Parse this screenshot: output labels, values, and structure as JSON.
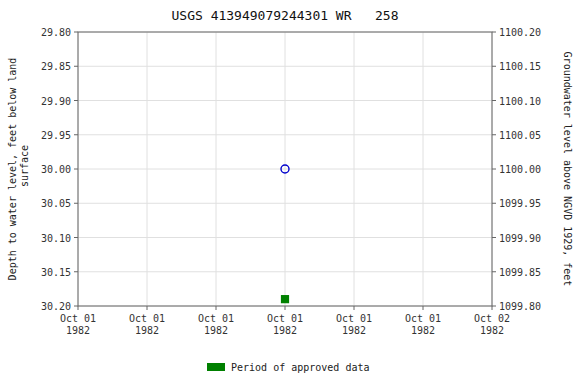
{
  "chart_data": {
    "type": "scatter",
    "title": "USGS 413949079244301 WR   258",
    "y_label": "Depth to water level, feet below land\n surface",
    "y2_label": "Groundwater level above NGVD 1929, feet",
    "categories": [
      "Oct 01\n1982",
      "Oct 01\n1982",
      "Oct 01\n1982",
      "Oct 01\n1982",
      "Oct 01\n1982",
      "Oct 01\n1982",
      "Oct 02\n1982"
    ],
    "series": [
      {
        "color": "#0000cc",
        "marker": "circle-open",
        "values": [
          null,
          null,
          null,
          30.0,
          null,
          null,
          null
        ]
      },
      {
        "name": "Period of approved data",
        "color": "#008000",
        "marker": "square",
        "values": [
          null,
          null,
          null,
          30.19,
          null,
          null,
          null
        ]
      }
    ],
    "ylim": [
      30.2,
      29.8
    ],
    "yticks": [
      {
        "value": 29.8,
        "label": "29.80"
      },
      {
        "value": 29.85,
        "label": "29.85"
      },
      {
        "value": 29.9,
        "label": "29.90"
      },
      {
        "value": 29.95,
        "label": "29.95"
      },
      {
        "value": 30.0,
        "label": "30.00"
      },
      {
        "value": 30.05,
        "label": "30.05"
      },
      {
        "value": 30.1,
        "label": "30.10"
      },
      {
        "value": 30.15,
        "label": "30.15"
      },
      {
        "value": 30.2,
        "label": "30.20"
      }
    ],
    "y2lim": [
      1099.8,
      1100.2
    ],
    "y2ticks": [
      {
        "value": 1099.8,
        "label": "1099.80"
      },
      {
        "value": 1099.85,
        "label": "1099.85"
      },
      {
        "value": 1099.9,
        "label": "1099.90"
      },
      {
        "value": 1099.95,
        "label": "1099.95"
      },
      {
        "value": 1100.0,
        "label": "1100.00"
      },
      {
        "value": 1100.05,
        "label": "1100.05"
      },
      {
        "value": 1100.1,
        "label": "1100.10"
      },
      {
        "value": 1100.15,
        "label": "1100.15"
      },
      {
        "value": 1100.2,
        "label": "1100.20"
      }
    ],
    "grid": true,
    "legend": "bottom"
  }
}
